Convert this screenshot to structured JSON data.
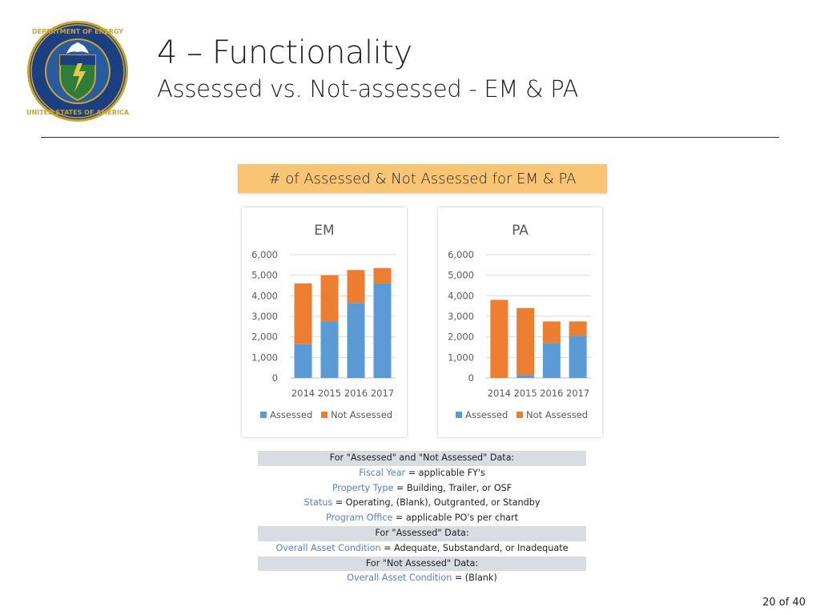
{
  "header": {
    "title": "4 – Functionality",
    "subtitle": "Assessed vs. Not-assessed - EM & PA",
    "seal_lettering": "DEPARTMENT OF ENERGY · UNITED STATES OF AMERICA"
  },
  "banner": {
    "text": "# of Assessed & Not Assessed for EM & PA"
  },
  "colors": {
    "assessed": "#5b9bd5",
    "not_assessed": "#ed7d31",
    "banner": "#f9c574",
    "notes_shade": "#d8dde3",
    "notes_key": "#5a80bf"
  },
  "chart_data": [
    {
      "type": "bar",
      "stacked": true,
      "title": "EM",
      "categories": [
        "2014",
        "2015",
        "2016",
        "2017"
      ],
      "series": [
        {
          "name": "Assessed",
          "values": [
            1650,
            2750,
            3650,
            4600
          ]
        },
        {
          "name": "Not Assessed",
          "values": [
            2950,
            2250,
            1600,
            750
          ]
        }
      ],
      "ylim": [
        0,
        6000
      ],
      "yticks": [
        "0",
        "1,000",
        "2,000",
        "3,000",
        "4,000",
        "5,000",
        "6,000"
      ],
      "grid": true,
      "legend": "bottom"
    },
    {
      "type": "bar",
      "stacked": true,
      "title": "PA",
      "categories": [
        "2014",
        "2015",
        "2016",
        "2017"
      ],
      "series": [
        {
          "name": "Assessed",
          "values": [
            0,
            150,
            1700,
            2050
          ]
        },
        {
          "name": "Not Assessed",
          "values": [
            3800,
            3250,
            1050,
            700
          ]
        }
      ],
      "ylim": [
        0,
        6000
      ],
      "yticks": [
        "0",
        "1,000",
        "2,000",
        "3,000",
        "4,000",
        "5,000",
        "6,000"
      ],
      "grid": true,
      "legend": "bottom"
    }
  ],
  "notes": {
    "header1": "For \"Assessed\" and \"Not Assessed\" Data:",
    "fy_key": "Fiscal Year",
    "fy_val": " = applicable FY's",
    "pt_key": "Property Type",
    "pt_val": " = Building, Trailer, or OSF",
    "st_key": "Status",
    "st_val": " = Operating, (Blank), Outgranted, or Standby",
    "po_key": "Program Office",
    "po_val": " = applicable PO's per chart",
    "header2": "For \"Assessed\" Data:",
    "oac_key": "Overall Asset Condition",
    "oac_val": " = Adequate, Substandard, or Inadequate",
    "header3": "For \"Not Assessed\" Data:",
    "oac2_key": "Overall Asset Condition",
    "oac2_val": " = (Blank)"
  },
  "footer": {
    "page": "20 of 40"
  }
}
